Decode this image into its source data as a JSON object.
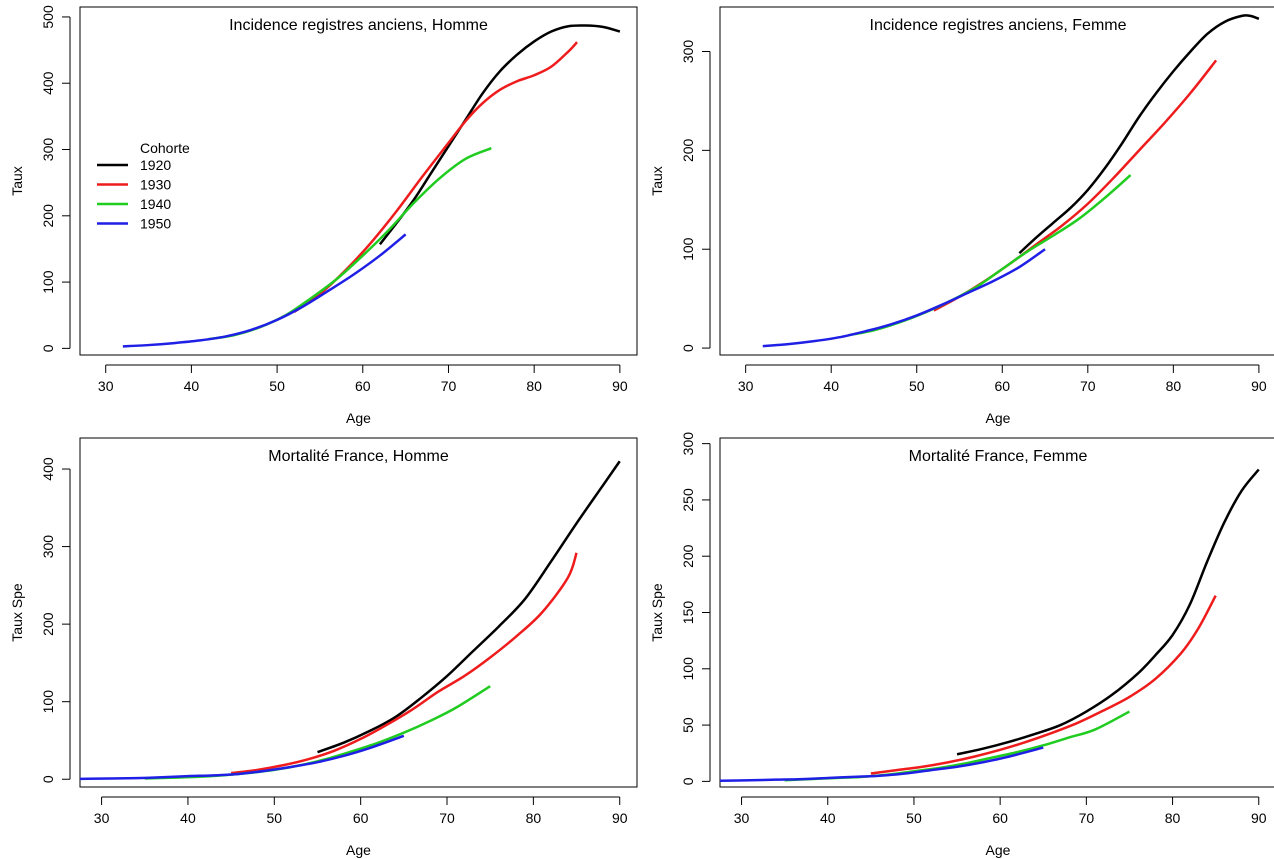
{
  "legend_title": "Cohorte",
  "series_colors": {
    "1920": "#000000",
    "1930": "#ee1c1c",
    "1940": "#1fcc1f",
    "1950": "#1f1fe6"
  },
  "chart_data": [
    {
      "type": "line",
      "title": "Incidence registres anciens, Homme",
      "xlabel": "Age",
      "ylabel": "Taux",
      "xlim": [
        27,
        92
      ],
      "ylim": [
        -10,
        515
      ],
      "xticks": [
        30,
        40,
        50,
        60,
        70,
        80,
        90
      ],
      "yticks": [
        0,
        100,
        200,
        300,
        400,
        500
      ],
      "legend": {
        "position": "top-left",
        "title": "Cohorte"
      },
      "series": [
        {
          "name": "1920",
          "x": [
            62,
            64,
            66,
            68,
            70,
            72,
            74,
            76,
            78,
            80,
            82,
            84,
            86,
            88,
            90
          ],
          "y": [
            157,
            190,
            225,
            265,
            305,
            345,
            385,
            418,
            443,
            463,
            478,
            486,
            487,
            485,
            478
          ]
        },
        {
          "name": "1930",
          "x": [
            52,
            55,
            58,
            61,
            64,
            67,
            70,
            72,
            74,
            76,
            78,
            80,
            82,
            84,
            85
          ],
          "y": [
            55,
            82,
            118,
            160,
            208,
            260,
            310,
            343,
            370,
            390,
            403,
            412,
            425,
            448,
            462
          ]
        },
        {
          "name": "1940",
          "x": [
            42,
            45,
            48,
            51,
            54,
            57,
            60,
            63,
            66,
            69,
            72,
            75
          ],
          "y": [
            14,
            20,
            32,
            50,
            76,
            105,
            140,
            178,
            220,
            257,
            286,
            302
          ]
        },
        {
          "name": "1950",
          "x": [
            32,
            35,
            38,
            41,
            44,
            47,
            50,
            53,
            56,
            59,
            62,
            65
          ],
          "y": [
            3,
            5,
            8,
            12,
            18,
            28,
            43,
            63,
            87,
            112,
            140,
            172
          ]
        }
      ]
    },
    {
      "type": "line",
      "title": "Incidence registres anciens, Femme",
      "xlabel": "Age",
      "ylabel": "Taux",
      "xlim": [
        27,
        92
      ],
      "ylim": [
        -7,
        345
      ],
      "xticks": [
        30,
        40,
        50,
        60,
        70,
        80,
        90
      ],
      "yticks": [
        0,
        100,
        200,
        300
      ],
      "series": [
        {
          "name": "1920",
          "x": [
            62,
            64,
            66,
            68,
            70,
            72,
            74,
            76,
            78,
            80,
            82,
            84,
            86,
            88,
            89,
            90
          ],
          "y": [
            96,
            112,
            127,
            142,
            160,
            182,
            207,
            234,
            258,
            280,
            300,
            318,
            330,
            336,
            336,
            333
          ]
        },
        {
          "name": "1930",
          "x": [
            52,
            55,
            58,
            61,
            64,
            67,
            70,
            73,
            76,
            79,
            82,
            85
          ],
          "y": [
            38,
            52,
            68,
            86,
            105,
            124,
            146,
            172,
            200,
            228,
            258,
            291
          ]
        },
        {
          "name": "1940",
          "x": [
            42,
            45,
            48,
            51,
            54,
            57,
            60,
            63,
            66,
            69,
            72,
            75
          ],
          "y": [
            13,
            18,
            26,
            36,
            48,
            62,
            80,
            98,
            114,
            131,
            152,
            175
          ]
        },
        {
          "name": "1950",
          "x": [
            32,
            35,
            38,
            41,
            44,
            47,
            50,
            53,
            56,
            59,
            62,
            65
          ],
          "y": [
            2,
            4,
            7,
            11,
            17,
            24,
            33,
            44,
            56,
            68,
            82,
            100
          ]
        }
      ]
    },
    {
      "type": "line",
      "title": "Mortalité France, Homme",
      "xlabel": "Age",
      "ylabel": "Taux Spe",
      "xlim": [
        27.5,
        92
      ],
      "ylim": [
        -10,
        440
      ],
      "xticks": [
        30,
        40,
        50,
        60,
        70,
        80,
        90
      ],
      "yticks": [
        0,
        100,
        200,
        300,
        400
      ],
      "series": [
        {
          "name": "1920",
          "x": [
            55,
            58,
            61,
            64,
            67,
            70,
            73,
            76,
            79,
            82,
            85,
            88,
            90
          ],
          "y": [
            35,
            47,
            62,
            80,
            105,
            133,
            165,
            197,
            232,
            280,
            330,
            378,
            410
          ]
        },
        {
          "name": "1930",
          "x": [
            45,
            48,
            51,
            54,
            57,
            60,
            63,
            66,
            69,
            72,
            75,
            78,
            81,
            84,
            85
          ],
          "y": [
            8,
            12,
            18,
            26,
            37,
            52,
            70,
            90,
            113,
            133,
            157,
            184,
            215,
            260,
            292
          ]
        },
        {
          "name": "1940",
          "x": [
            35,
            38,
            41,
            44,
            47,
            50,
            53,
            56,
            59,
            62,
            65,
            68,
            71,
            75
          ],
          "y": [
            1,
            2,
            3,
            5,
            8,
            12,
            18,
            26,
            36,
            47,
            60,
            75,
            92,
            120
          ]
        },
        {
          "name": "1950",
          "x": [
            27.5,
            31,
            34,
            37,
            40,
            43,
            46,
            49,
            52,
            55,
            58,
            61,
            65
          ],
          "y": [
            0.5,
            1,
            1.5,
            2.5,
            4,
            5,
            7,
            11,
            16,
            22,
            30,
            40,
            56
          ]
        }
      ]
    },
    {
      "type": "line",
      "title": "Mortalité France, Femme",
      "xlabel": "Age",
      "ylabel": "Taux Spe",
      "xlim": [
        27.5,
        92
      ],
      "ylim": [
        -5,
        305
      ],
      "xticks": [
        30,
        40,
        50,
        60,
        70,
        80,
        90
      ],
      "yticks": [
        0,
        50,
        100,
        150,
        200,
        250,
        300
      ],
      "series": [
        {
          "name": "1920",
          "x": [
            55,
            58,
            61,
            64,
            67,
            70,
            73,
            76,
            78,
            80,
            82,
            84,
            86,
            88,
            90
          ],
          "y": [
            24,
            29,
            35,
            42,
            50,
            62,
            77,
            96,
            112,
            130,
            157,
            195,
            230,
            258,
            277
          ]
        },
        {
          "name": "1930",
          "x": [
            45,
            48,
            51,
            54,
            57,
            60,
            63,
            66,
            69,
            72,
            75,
            78,
            81,
            83,
            85
          ],
          "y": [
            7,
            10,
            13,
            17,
            22,
            28,
            35,
            43,
            52,
            63,
            75,
            91,
            114,
            136,
            165
          ]
        },
        {
          "name": "1940",
          "x": [
            35,
            38,
            41,
            44,
            47,
            50,
            53,
            56,
            59,
            62,
            65,
            68,
            71,
            75
          ],
          "y": [
            1,
            2,
            3,
            4,
            6,
            9,
            12,
            16,
            21,
            26,
            32,
            39,
            46,
            62
          ]
        },
        {
          "name": "1950",
          "x": [
            27.5,
            31,
            34,
            37,
            40,
            43,
            46,
            49,
            52,
            55,
            58,
            61,
            65
          ],
          "y": [
            0.5,
            1,
            1.5,
            2,
            3,
            4,
            5,
            7,
            10,
            13,
            17,
            22,
            30
          ]
        }
      ]
    }
  ]
}
